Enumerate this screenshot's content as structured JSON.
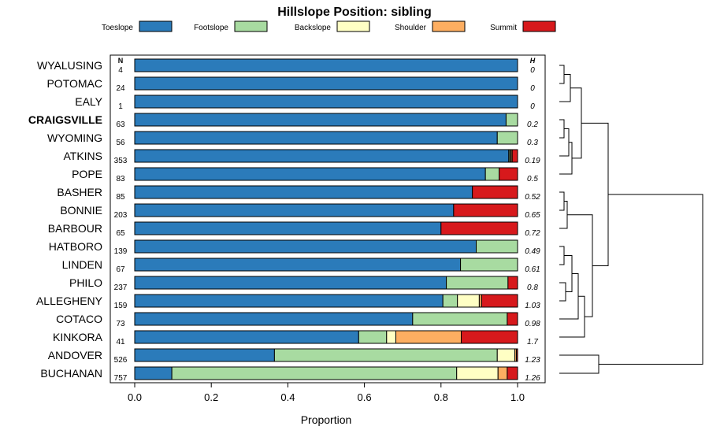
{
  "chart_data": {
    "type": "bar",
    "orientation": "horizontal",
    "stacked": true,
    "title": "Hillslope Position: sibling",
    "xlabel": "Proportion",
    "xlim": [
      0,
      1
    ],
    "xticks": [
      "0.0",
      "0.2",
      "0.4",
      "0.6",
      "0.8",
      "1.0"
    ],
    "legend_position": "top",
    "n_header": "N",
    "h_header": "H",
    "highlight": "CRAIGSVILLE",
    "dendrogram": true,
    "series": [
      {
        "name": "Toeslope",
        "color": "#2b7bba"
      },
      {
        "name": "Footslope",
        "color": "#a8dba1"
      },
      {
        "name": "Backslope",
        "color": "#ffffc4"
      },
      {
        "name": "Shoulder",
        "color": "#fdae61"
      },
      {
        "name": "Summit",
        "color": "#d7191c"
      }
    ],
    "rows": [
      {
        "label": "WYALUSING",
        "n": "4",
        "h": "0",
        "values": [
          1.0,
          0,
          0,
          0,
          0
        ]
      },
      {
        "label": "POTOMAC",
        "n": "24",
        "h": "0",
        "values": [
          1.0,
          0,
          0,
          0,
          0
        ]
      },
      {
        "label": "EALY",
        "n": "1",
        "h": "0",
        "values": [
          1.0,
          0,
          0,
          0,
          0
        ]
      },
      {
        "label": "CRAIGSVILLE",
        "n": "63",
        "h": "0.2",
        "values": [
          0.97,
          0.03,
          0,
          0,
          0
        ]
      },
      {
        "label": "WYOMING",
        "n": "56",
        "h": "0.3",
        "values": [
          0.947,
          0.053,
          0,
          0,
          0
        ]
      },
      {
        "label": "ATKINS",
        "n": "353",
        "h": "0.19",
        "values": [
          0.977,
          0.003,
          0.003,
          0.003,
          0.014
        ]
      },
      {
        "label": "POPE",
        "n": "83",
        "h": "0.5",
        "values": [
          0.916,
          0.036,
          0,
          0,
          0.048
        ]
      },
      {
        "label": "BASHER",
        "n": "85",
        "h": "0.52",
        "values": [
          0.882,
          0,
          0,
          0,
          0.118
        ]
      },
      {
        "label": "BONNIE",
        "n": "203",
        "h": "0.65",
        "values": [
          0.833,
          0,
          0,
          0,
          0.167
        ]
      },
      {
        "label": "BARBOUR",
        "n": "65",
        "h": "0.72",
        "values": [
          0.8,
          0,
          0,
          0,
          0.2
        ]
      },
      {
        "label": "HATBORO",
        "n": "139",
        "h": "0.49",
        "values": [
          0.892,
          0.108,
          0,
          0,
          0
        ]
      },
      {
        "label": "LINDEN",
        "n": "67",
        "h": "0.61",
        "values": [
          0.851,
          0.149,
          0,
          0,
          0
        ]
      },
      {
        "label": "PHILO",
        "n": "237",
        "h": "0.8",
        "values": [
          0.814,
          0.161,
          0,
          0,
          0.025
        ]
      },
      {
        "label": "ALLEGHENY",
        "n": "159",
        "h": "1.03",
        "values": [
          0.805,
          0.038,
          0.057,
          0.006,
          0.094
        ]
      },
      {
        "label": "COTACO",
        "n": "73",
        "h": "0.98",
        "values": [
          0.726,
          0.247,
          0,
          0,
          0.027
        ]
      },
      {
        "label": "KINKORA",
        "n": "41",
        "h": "1.7",
        "values": [
          0.585,
          0.073,
          0.024,
          0.171,
          0.147
        ]
      },
      {
        "label": "ANDOVER",
        "n": "526",
        "h": "1.23",
        "values": [
          0.365,
          0.582,
          0.046,
          0.004,
          0.003
        ]
      },
      {
        "label": "BUCHANAN",
        "n": "757",
        "h": "1.26",
        "values": [
          0.097,
          0.744,
          0.108,
          0.024,
          0.027
        ]
      }
    ]
  }
}
